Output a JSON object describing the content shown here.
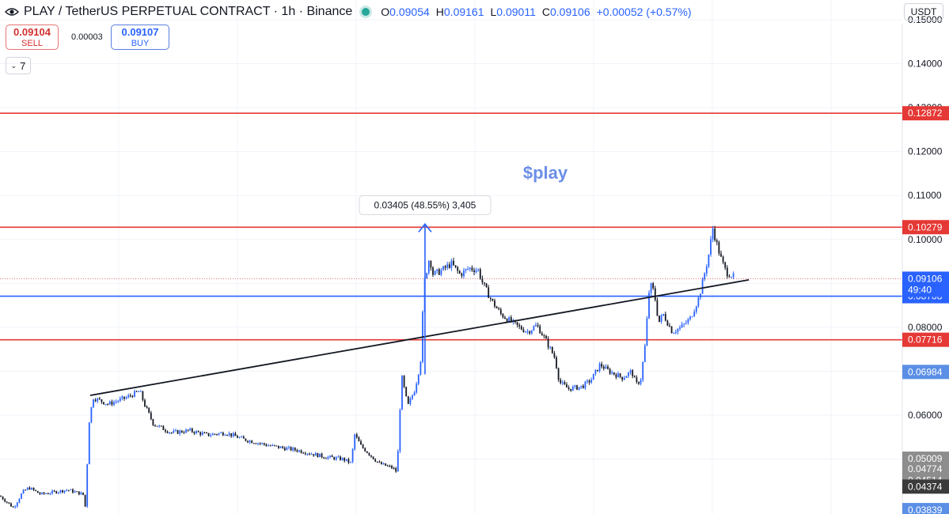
{
  "header": {
    "title": "PLAY / TetherUS PERPETUAL CONTRACT · 1h · Binance",
    "ohlc": {
      "o_label": "O",
      "o": "0.09054",
      "h_label": "H",
      "h": "0.09161",
      "l_label": "L",
      "l": "0.09011",
      "c_label": "C",
      "c": "0.09106",
      "change": "+0.00052 (+0.57%)"
    }
  },
  "trade": {
    "sell_price": "0.09104",
    "sell_label": "SELL",
    "spread": "0.00003",
    "buy_price": "0.09107",
    "buy_label": "BUY"
  },
  "toolbar": {
    "interval_value": "7"
  },
  "axis": {
    "currency": "USDT",
    "ylim": [
      0.0375,
      0.1545
    ]
  },
  "colors": {
    "red_level": "#e53935",
    "blue_level": "#2962ff",
    "candle_up": "#2962ff",
    "candle_down": "#131722",
    "trendline": "#131722",
    "watermark": "#6b8fe8",
    "measure_arrow": "#2962ff"
  },
  "chart_data": {
    "type": "candlestick",
    "y_ticks": [
      "0.15000",
      "0.14000",
      "0.13000",
      "0.12000",
      "0.11000",
      "0.10000",
      "0.09000",
      "0.08000",
      "0.07000",
      "0.06000",
      "0.05000"
    ],
    "y_tick_values": [
      0.15,
      0.14,
      0.13,
      0.12,
      0.11,
      0.1,
      0.09,
      0.08,
      0.07,
      0.06,
      0.05
    ],
    "horizontal_lines": [
      {
        "value": 0.12872,
        "label": "0.12872",
        "color": "#e53935"
      },
      {
        "value": 0.10279,
        "label": "0.10279",
        "color": "#e53935"
      },
      {
        "value": 0.08708,
        "label": "0.08708",
        "color": "#2962ff"
      },
      {
        "value": 0.07716,
        "label": "0.07716",
        "color": "#e53935"
      }
    ],
    "current_price": {
      "value": 0.09106,
      "label": "0.09106",
      "countdown": "49:40"
    },
    "price_tags": [
      {
        "value": 0.06984,
        "label": "0.06984",
        "bg": "#5b8fe6"
      },
      {
        "value": 0.05009,
        "label": "0.05009",
        "bg": "#8d8d8d"
      },
      {
        "value": 0.04774,
        "label": "0.04774",
        "bg": "#8d8d8d"
      },
      {
        "value": 0.04514,
        "label": "0.04514",
        "bg": "#8d8d8d"
      },
      {
        "value": 0.04374,
        "label": "0.04374",
        "bg": "#3b3b3b"
      },
      {
        "value": 0.03839,
        "label": "0.03839",
        "bg": "#5b8fe6"
      }
    ],
    "trendline": {
      "from": [
        0.1,
        0.0645
      ],
      "to": [
        0.83,
        0.0908
      ]
    },
    "measure": {
      "label": "0.03405 (48.55%) 3,405",
      "from_value": 0.0693,
      "to_value": 0.1035,
      "x": 0.471
    },
    "watermark": "$play",
    "price_path": [
      [
        0.0,
        0.0416
      ],
      [
        0.015,
        0.0389
      ],
      [
        0.025,
        0.0425
      ],
      [
        0.032,
        0.0435
      ],
      [
        0.045,
        0.042
      ],
      [
        0.06,
        0.0425
      ],
      [
        0.075,
        0.043
      ],
      [
        0.092,
        0.042
      ],
      [
        0.095,
        0.0385
      ],
      [
        0.098,
        0.0575
      ],
      [
        0.103,
        0.064
      ],
      [
        0.12,
        0.0625
      ],
      [
        0.14,
        0.064
      ],
      [
        0.155,
        0.0655
      ],
      [
        0.16,
        0.0625
      ],
      [
        0.17,
        0.058
      ],
      [
        0.19,
        0.056
      ],
      [
        0.21,
        0.0565
      ],
      [
        0.23,
        0.0555
      ],
      [
        0.25,
        0.056
      ],
      [
        0.27,
        0.0545
      ],
      [
        0.3,
        0.053
      ],
      [
        0.33,
        0.052
      ],
      [
        0.36,
        0.0505
      ],
      [
        0.38,
        0.05
      ],
      [
        0.39,
        0.049
      ],
      [
        0.392,
        0.056
      ],
      [
        0.4,
        0.053
      ],
      [
        0.41,
        0.051
      ],
      [
        0.42,
        0.049
      ],
      [
        0.435,
        0.048
      ],
      [
        0.44,
        0.047
      ],
      [
        0.445,
        0.069
      ],
      [
        0.452,
        0.062
      ],
      [
        0.46,
        0.066
      ],
      [
        0.466,
        0.072
      ],
      [
        0.47,
        0.09
      ],
      [
        0.476,
        0.096
      ],
      [
        0.48,
        0.092
      ],
      [
        0.49,
        0.093
      ],
      [
        0.5,
        0.0945
      ],
      [
        0.51,
        0.092
      ],
      [
        0.52,
        0.0935
      ],
      [
        0.53,
        0.093
      ],
      [
        0.535,
        0.09
      ],
      [
        0.545,
        0.086
      ],
      [
        0.555,
        0.083
      ],
      [
        0.565,
        0.0815
      ],
      [
        0.575,
        0.08
      ],
      [
        0.585,
        0.079
      ],
      [
        0.595,
        0.0805
      ],
      [
        0.605,
        0.077
      ],
      [
        0.615,
        0.073
      ],
      [
        0.62,
        0.0675
      ],
      [
        0.63,
        0.066
      ],
      [
        0.645,
        0.0665
      ],
      [
        0.655,
        0.068
      ],
      [
        0.665,
        0.0715
      ],
      [
        0.675,
        0.07
      ],
      [
        0.69,
        0.0685
      ],
      [
        0.7,
        0.07
      ],
      [
        0.705,
        0.067
      ],
      [
        0.71,
        0.068
      ],
      [
        0.715,
        0.076
      ],
      [
        0.72,
        0.09
      ],
      [
        0.725,
        0.088
      ],
      [
        0.73,
        0.081
      ],
      [
        0.735,
        0.083
      ],
      [
        0.745,
        0.079
      ],
      [
        0.755,
        0.08
      ],
      [
        0.765,
        0.082
      ],
      [
        0.775,
        0.087
      ],
      [
        0.785,
        0.096
      ],
      [
        0.79,
        0.1025
      ],
      [
        0.795,
        0.0985
      ],
      [
        0.8,
        0.095
      ],
      [
        0.805,
        0.0925
      ],
      [
        0.81,
        0.092
      ],
      [
        0.815,
        0.091
      ]
    ]
  }
}
